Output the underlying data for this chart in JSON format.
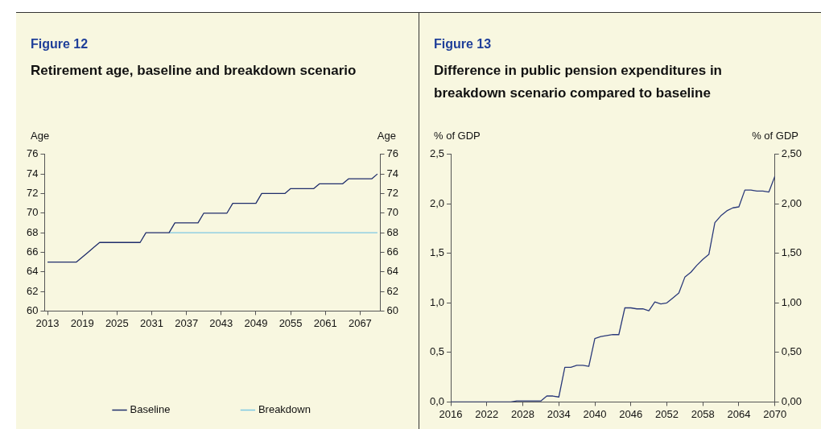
{
  "chart_data": [
    {
      "type": "line",
      "title": "Figure 12",
      "subtitle": "Retirement age, baseline and breakdown scenario",
      "ylabel": "Age",
      "y2label": "Age",
      "xlim": [
        2012.5,
        2070.5
      ],
      "xticks": [
        2013,
        2019,
        2025,
        2031,
        2037,
        2043,
        2049,
        2055,
        2061,
        2067
      ],
      "ylim": [
        60,
        76
      ],
      "yticks": [
        60,
        62,
        64,
        66,
        68,
        70,
        72,
        74,
        76
      ],
      "y2lim": [
        60,
        76
      ],
      "y2ticks": [
        60,
        62,
        64,
        66,
        68,
        70,
        72,
        74,
        76
      ],
      "grid": false,
      "legend": "bottom",
      "marker": "none",
      "series": [
        {
          "name": "Baseline",
          "color": "#1f2d6b",
          "x": [
            2013,
            2018,
            2019,
            2020,
            2021,
            2022,
            2029,
            2030,
            2034,
            2035,
            2039,
            2040,
            2044,
            2045,
            2049,
            2050,
            2054,
            2055,
            2059,
            2060,
            2064,
            2065,
            2069,
            2070
          ],
          "values": [
            65,
            65,
            65.5,
            66,
            66.5,
            67,
            67,
            68,
            68,
            69,
            69,
            70,
            70,
            71,
            71,
            72,
            72,
            72.5,
            72.5,
            73,
            73,
            73.5,
            73.5,
            74
          ]
        },
        {
          "name": "Breakdown",
          "color": "#7ec8e3",
          "x": [
            2034,
            2070
          ],
          "values": [
            68,
            68
          ]
        }
      ]
    },
    {
      "type": "line",
      "title": "Figure 13",
      "subtitle": "Difference in public pension expenditures in breakdown scenario compared to baseline",
      "ylabel": "% of GDP",
      "y2label": "% of GDP",
      "xlim": [
        2016,
        2070
      ],
      "xticks": [
        2016,
        2022,
        2028,
        2034,
        2040,
        2046,
        2052,
        2058,
        2064,
        2070
      ],
      "ylim": [
        0,
        2.5
      ],
      "yticks": [
        {
          "value": 0,
          "label": "0,0"
        },
        {
          "value": 0.5,
          "label": "0,5"
        },
        {
          "value": 1,
          "label": "1,0"
        },
        {
          "value": 1.5,
          "label": "1,5"
        },
        {
          "value": 2,
          "label": "2,0"
        },
        {
          "value": 2.5,
          "label": "2,5"
        }
      ],
      "y2lim": [
        0,
        2.5
      ],
      "y2ticks": [
        {
          "value": 0,
          "label": "0,00"
        },
        {
          "value": 0.5,
          "label": "0,50"
        },
        {
          "value": 1,
          "label": "1,00"
        },
        {
          "value": 1.5,
          "label": "1,50"
        },
        {
          "value": 2,
          "label": "2,00"
        },
        {
          "value": 2.5,
          "label": "2,50"
        }
      ],
      "grid": false,
      "legend": false,
      "marker": "none",
      "x": [
        2016,
        2017,
        2018,
        2019,
        2020,
        2021,
        2022,
        2023,
        2024,
        2025,
        2026,
        2027,
        2028,
        2029,
        2030,
        2031,
        2032,
        2033,
        2034,
        2035,
        2036,
        2037,
        2038,
        2039,
        2040,
        2041,
        2042,
        2043,
        2044,
        2045,
        2046,
        2047,
        2048,
        2049,
        2050,
        2051,
        2052,
        2053,
        2054,
        2055,
        2056,
        2057,
        2058,
        2059,
        2060,
        2061,
        2062,
        2063,
        2064,
        2065,
        2066,
        2067,
        2068,
        2069,
        2070
      ],
      "series": [
        {
          "color": "#2b3a7a",
          "values": [
            0,
            0,
            0,
            0,
            0,
            0,
            0,
            0,
            0,
            0,
            0,
            0.01,
            0.01,
            0.01,
            0.01,
            0.01,
            0.06,
            0.06,
            0.05,
            0.35,
            0.35,
            0.37,
            0.37,
            0.36,
            0.64,
            0.66,
            0.67,
            0.68,
            0.68,
            0.95,
            0.95,
            0.94,
            0.94,
            0.92,
            1.01,
            0.99,
            1.0,
            1.05,
            1.1,
            1.26,
            1.31,
            1.38,
            1.44,
            1.49,
            1.81,
            1.88,
            1.93,
            1.96,
            1.97,
            2.14,
            2.14,
            2.13,
            2.13,
            2.12,
            2.28
          ]
        }
      ]
    }
  ]
}
